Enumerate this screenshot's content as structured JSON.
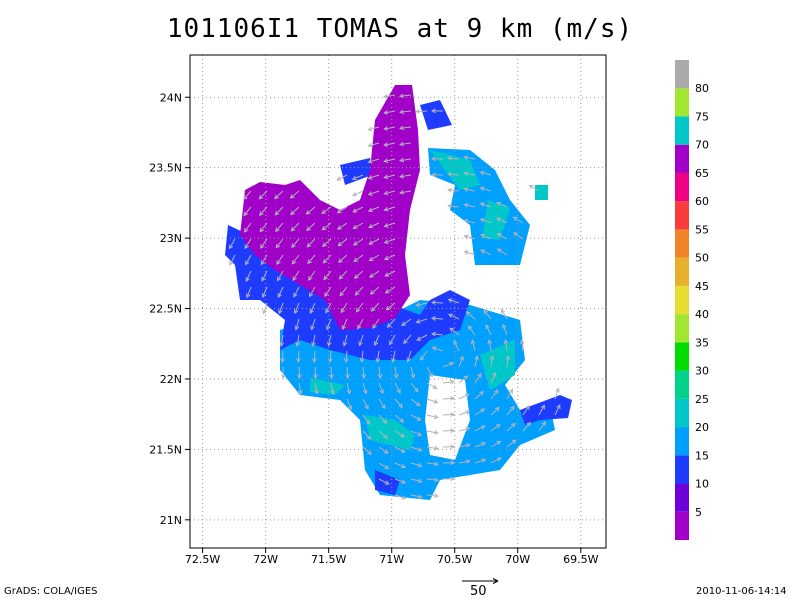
{
  "title": "101106I1 TOMAS at 9 km (m/s)",
  "footer": {
    "left": "GrADS: COLA/IGES",
    "right": "2010-11-06-14:14"
  },
  "reference_vector_label": "50",
  "colorbar": {
    "labels": [
      "5",
      "10",
      "15",
      "20",
      "25",
      "30",
      "35",
      "40",
      "45",
      "50",
      "55",
      "60",
      "65",
      "70",
      "75",
      "80"
    ],
    "colors": [
      "#a000c8",
      "#6e00dc",
      "#1e3cff",
      "#00a0ff",
      "#00c8c8",
      "#00d28c",
      "#00dc00",
      "#a0e632",
      "#e6dc32",
      "#e6af2d",
      "#f08228",
      "#fa3c3c",
      "#f00082",
      "#a000c8",
      "#00c8c8",
      "#a0e632",
      "#aaaaaa"
    ]
  },
  "chart_data": {
    "type": "heatmap",
    "title": "101106I1 TOMAS at 9 km (m/s)",
    "x_ticks": [
      "72.5W",
      "72W",
      "71.5W",
      "71W",
      "70.5W",
      "70W",
      "69.5W"
    ],
    "y_ticks": [
      "21N",
      "21.5N",
      "22N",
      "22.5N",
      "23N",
      "23.5N",
      "24N"
    ],
    "xlim": [
      -72.6,
      -69.3
    ],
    "ylim": [
      20.8,
      24.3
    ],
    "grid": true,
    "colorbar_levels": [
      5,
      10,
      15,
      20,
      25,
      30,
      35,
      40,
      45,
      50,
      55,
      60,
      65,
      70,
      75,
      80
    ],
    "regions": [
      {
        "name": "purple-northwest",
        "color": "#a000c8",
        "center": [
          -71.6,
          23.0
        ],
        "approx_speed_ms": "0-5"
      },
      {
        "name": "blue-band",
        "color": "#1e3cff",
        "center": [
          -71.2,
          22.3
        ],
        "approx_speed_ms": "10-15"
      },
      {
        "name": "lightblue-south",
        "color": "#00a0ff",
        "center": [
          -70.8,
          21.6
        ],
        "approx_speed_ms": "15-20"
      },
      {
        "name": "lightblue-east",
        "color": "#00a0ff",
        "center": [
          -70.2,
          23.0
        ],
        "approx_speed_ms": "15-20"
      },
      {
        "name": "cyan-patches",
        "color": "#00c8c8",
        "center": [
          -70.6,
          22.0
        ],
        "approx_speed_ms": "20-25"
      }
    ],
    "wind_vectors": "gray arrows, generally pointing northeast in the south and northwest in the north (cyclonic flow)"
  }
}
